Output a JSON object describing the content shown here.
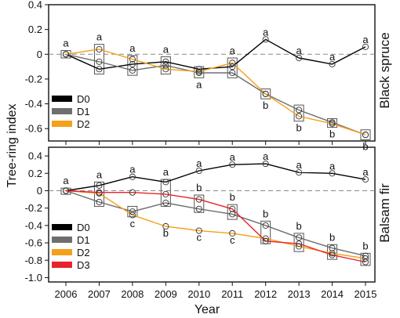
{
  "figure": {
    "ylabel": "Tree-ring index",
    "xlabel": "Year"
  },
  "chart_data": [
    {
      "type": "line",
      "panel_title": "Black spruce",
      "x": [
        2006,
        2007,
        2008,
        2009,
        2010,
        2011,
        2012,
        2013,
        2014,
        2015
      ],
      "ylim": [
        -0.7,
        0.4
      ],
      "yticks": [
        "0.4",
        "0.2",
        "0",
        "-0.2",
        "-0.4",
        "-0.6"
      ],
      "ytick_values": [
        0.4,
        0.2,
        0,
        -0.2,
        -0.4,
        -0.6
      ],
      "reference_line": 0,
      "legend_position": "bottom-left",
      "series": [
        {
          "name": "D0",
          "color": "#000000",
          "values": [
            0.0,
            -0.12,
            -0.08,
            -0.06,
            -0.12,
            -0.1,
            0.12,
            -0.03,
            -0.08,
            0.06
          ]
        },
        {
          "name": "D1",
          "color": "#6e6e6e",
          "values": [
            0.0,
            -0.06,
            -0.13,
            -0.09,
            -0.15,
            -0.15,
            -0.32,
            -0.45,
            -0.55,
            -0.65
          ]
        },
        {
          "name": "D2",
          "color": "#f5a01a",
          "values": [
            0.0,
            0.04,
            -0.04,
            -0.12,
            -0.14,
            -0.07,
            -0.32,
            -0.5,
            -0.56,
            -0.65
          ]
        }
      ],
      "boxes": [
        {
          "x": 2006,
          "low": -0.03,
          "high": 0.03
        },
        {
          "x": 2007,
          "low": -0.16,
          "high": 0.08
        },
        {
          "x": 2008,
          "low": -0.17,
          "high": -0.01
        },
        {
          "x": 2009,
          "low": -0.16,
          "high": -0.02
        },
        {
          "x": 2010,
          "low": -0.19,
          "high": -0.1
        },
        {
          "x": 2011,
          "low": -0.19,
          "high": -0.03
        },
        {
          "x": 2012,
          "low": -0.36,
          "high": -0.28
        },
        {
          "x": 2013,
          "low": -0.54,
          "high": -0.41
        },
        {
          "x": 2014,
          "low": -0.59,
          "high": -0.52
        },
        {
          "x": 2015,
          "low": -0.69,
          "high": -0.61
        }
      ],
      "annotations": [
        {
          "x": 2006,
          "text": "a",
          "pos": "above",
          "y": 0.03
        },
        {
          "x": 2007,
          "text": "a",
          "pos": "above",
          "y": 0.08
        },
        {
          "x": 2008,
          "text": "a",
          "pos": "above",
          "y": -0.01
        },
        {
          "x": 2009,
          "text": "a",
          "pos": "above",
          "y": -0.02
        },
        {
          "x": 2010,
          "text": "a",
          "pos": "below",
          "y": -0.19
        },
        {
          "x": 2011,
          "text": "a",
          "pos": "above",
          "y": -0.03
        },
        {
          "x": 2012,
          "text": "a",
          "pos": "above",
          "y": 0.12
        },
        {
          "x": 2012,
          "text": "b",
          "pos": "below",
          "y": -0.36
        },
        {
          "x": 2013,
          "text": "a",
          "pos": "above",
          "y": -0.03
        },
        {
          "x": 2013,
          "text": "b",
          "pos": "below",
          "y": -0.54
        },
        {
          "x": 2014,
          "text": "a",
          "pos": "above",
          "y": -0.08
        },
        {
          "x": 2014,
          "text": "b",
          "pos": "below",
          "y": -0.59
        },
        {
          "x": 2015,
          "text": "a",
          "pos": "above",
          "y": 0.06
        },
        {
          "x": 2015,
          "text": "b",
          "pos": "below",
          "y": -0.69
        }
      ]
    },
    {
      "type": "line",
      "panel_title": "Balsam fir",
      "x": [
        2006,
        2007,
        2008,
        2009,
        2010,
        2011,
        2012,
        2013,
        2014,
        2015
      ],
      "ylim": [
        -1.05,
        0.5
      ],
      "yticks": [
        "0.4",
        "0.2",
        "0",
        "-0.2",
        "-0.4",
        "-0.6",
        "-0.8",
        "-1.0"
      ],
      "ytick_values": [
        0.4,
        0.2,
        0,
        -0.2,
        -0.4,
        -0.6,
        -0.8,
        -1.0
      ],
      "reference_line": 0,
      "legend_position": "bottom-left",
      "series": [
        {
          "name": "D0",
          "color": "#000000",
          "values": [
            0.0,
            0.06,
            0.16,
            0.1,
            0.23,
            0.3,
            0.31,
            0.21,
            0.2,
            0.13
          ]
        },
        {
          "name": "D1",
          "color": "#6e6e6e",
          "values": [
            0.0,
            -0.13,
            -0.24,
            -0.14,
            -0.21,
            -0.27,
            -0.4,
            -0.54,
            -0.66,
            -0.75
          ]
        },
        {
          "name": "D2",
          "color": "#f5a01a",
          "values": [
            0.0,
            -0.03,
            -0.28,
            -0.41,
            -0.46,
            -0.49,
            -0.55,
            -0.64,
            -0.72,
            -0.78
          ]
        },
        {
          "name": "D3",
          "color": "#e8242a",
          "values": [
            0.0,
            -0.02,
            -0.02,
            -0.04,
            -0.1,
            -0.21,
            -0.58,
            -0.61,
            -0.74,
            -0.82
          ]
        }
      ],
      "boxes": [
        {
          "x": 2006,
          "low": -0.03,
          "high": 0.03
        },
        {
          "x": 2007,
          "low": -0.18,
          "high": 0.1
        },
        {
          "x": 2008,
          "low": -0.3,
          "high": -0.18
        },
        {
          "x": 2009,
          "low": -0.18,
          "high": 0.13
        },
        {
          "x": 2010,
          "low": -0.25,
          "high": -0.05
        },
        {
          "x": 2011,
          "low": -0.33,
          "high": -0.16
        },
        {
          "x": 2012,
          "low": -0.61,
          "high": -0.35
        },
        {
          "x": 2013,
          "low": -0.7,
          "high": -0.49
        },
        {
          "x": 2014,
          "low": -0.79,
          "high": -0.62
        },
        {
          "x": 2015,
          "low": -0.86,
          "high": -0.72
        }
      ],
      "annotations": [
        {
          "x": 2006,
          "text": "a",
          "pos": "above",
          "y": 0.03
        },
        {
          "x": 2007,
          "text": "a",
          "pos": "above",
          "y": 0.1
        },
        {
          "x": 2008,
          "text": "a",
          "pos": "above",
          "y": 0.16
        },
        {
          "x": 2008,
          "text": "c",
          "pos": "below",
          "y": -0.3
        },
        {
          "x": 2009,
          "text": "a",
          "pos": "above",
          "y": 0.13
        },
        {
          "x": 2009,
          "text": "b",
          "pos": "below",
          "y": -0.41
        },
        {
          "x": 2010,
          "text": "a",
          "pos": "above",
          "y": 0.23
        },
        {
          "x": 2010,
          "text": "b",
          "pos": "above",
          "y": -0.05
        },
        {
          "x": 2010,
          "text": "c",
          "pos": "below",
          "y": -0.46
        },
        {
          "x": 2011,
          "text": "a",
          "pos": "above",
          "y": 0.3
        },
        {
          "x": 2011,
          "text": "b",
          "pos": "above",
          "y": -0.16
        },
        {
          "x": 2011,
          "text": "c",
          "pos": "below",
          "y": -0.49
        },
        {
          "x": 2012,
          "text": "a",
          "pos": "above",
          "y": 0.31
        },
        {
          "x": 2012,
          "text": "b",
          "pos": "above",
          "y": -0.35
        },
        {
          "x": 2013,
          "text": "a",
          "pos": "above",
          "y": 0.21
        },
        {
          "x": 2013,
          "text": "b",
          "pos": "above",
          "y": -0.49
        },
        {
          "x": 2014,
          "text": "a",
          "pos": "above",
          "y": 0.2
        },
        {
          "x": 2014,
          "text": "b",
          "pos": "above",
          "y": -0.62
        },
        {
          "x": 2015,
          "text": "a",
          "pos": "above",
          "y": 0.13
        },
        {
          "x": 2015,
          "text": "b",
          "pos": "above",
          "y": -0.72
        }
      ]
    }
  ]
}
